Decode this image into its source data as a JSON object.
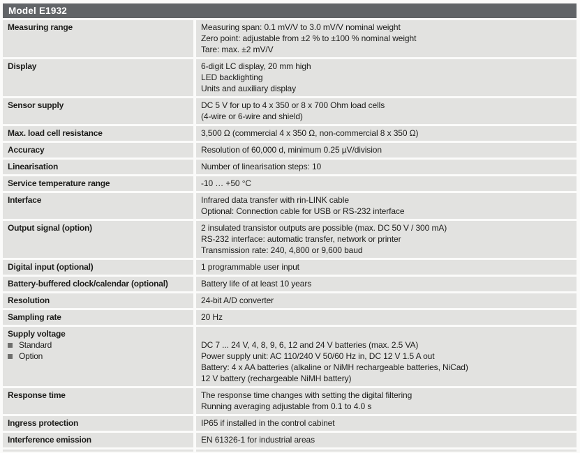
{
  "header": {
    "title": "Model E1932"
  },
  "colors": {
    "header_bg": "#616467",
    "cell_bg": "#e2e2e0",
    "text": "#1d1d1b",
    "bullet": "#6f6f6d"
  },
  "table": {
    "rows": [
      {
        "label": "Measuring range",
        "values": [
          "Measuring span: 0.1 mV/V to 3.0 mV/V nominal weight",
          "Zero point: adjustable from ±2 % to ±100 % nominal weight",
          "Tare: max. ±2 mV/V"
        ]
      },
      {
        "label": "Display",
        "values": [
          "6-digit LC display, 20 mm high",
          "LED backlighting",
          "Units and auxiliary display"
        ]
      },
      {
        "label": "Sensor supply",
        "values": [
          "DC 5 V for up to 4 x 350 or 8 x 700 Ohm load cells",
          "(4-wire or 6-wire and shield)"
        ]
      },
      {
        "label": "Max. load cell resistance",
        "values": [
          "3,500 Ω (commercial 4 x 350 Ω, non-commercial 8 x 350 Ω)"
        ]
      },
      {
        "label": "Accuracy",
        "values": [
          "Resolution of 60,000 d, minimum 0.25 µV/division"
        ]
      },
      {
        "label": "Linearisation",
        "values": [
          "Number of linearisation steps: 10"
        ]
      },
      {
        "label": "Service temperature range",
        "values": [
          "-10 … +50 °C"
        ]
      },
      {
        "label": "Interface",
        "values": [
          "Infrared data transfer with rin-LINK cable",
          "Optional: Connection cable for USB or RS-232 interface"
        ]
      },
      {
        "label": "Output signal (option)",
        "values": [
          "2 insulated transistor outputs are possible (max. DC 50 V / 300 mA)",
          "RS-232 interface: automatic transfer, network or printer",
          "Transmission rate: 240, 4,800 or 9,600 baud"
        ]
      },
      {
        "label": "Digital input (optional)",
        "values": [
          "1 programmable user input"
        ]
      },
      {
        "label": "Battery-buffered clock/calendar (optional)",
        "values": [
          "Battery life of at least 10 years"
        ]
      },
      {
        "label": "Resolution",
        "values": [
          "24-bit A/D converter"
        ]
      },
      {
        "label": "Sampling rate",
        "values": [
          "20 Hz"
        ]
      },
      {
        "label": "Supply voltage",
        "sub_items": [
          "Standard",
          "Option"
        ],
        "values": [
          "",
          "DC 7 ... 24 V, 4, 8, 9, 6, 12 and 24 V batteries (max. 2.5 VA)",
          "Power supply unit: AC 110/240 V 50/60 Hz in, DC 12 V 1.5 A out",
          "Battery: 4 x AA batteries (alkaline or NiMH rechargeable batteries, NiCad)",
          "12 V battery (rechargeable NiMH battery)"
        ]
      },
      {
        "label": "Response time",
        "values": [
          "The response time changes with setting the digital filtering",
          "Running averaging adjustable from 0.1 to 4.0 s"
        ]
      },
      {
        "label": "Ingress protection",
        "values": [
          "IP65 if installed in the control cabinet"
        ]
      },
      {
        "label": "Interference emission",
        "values": [
          "EN 61326-1 for industrial areas"
        ]
      }
    ]
  }
}
